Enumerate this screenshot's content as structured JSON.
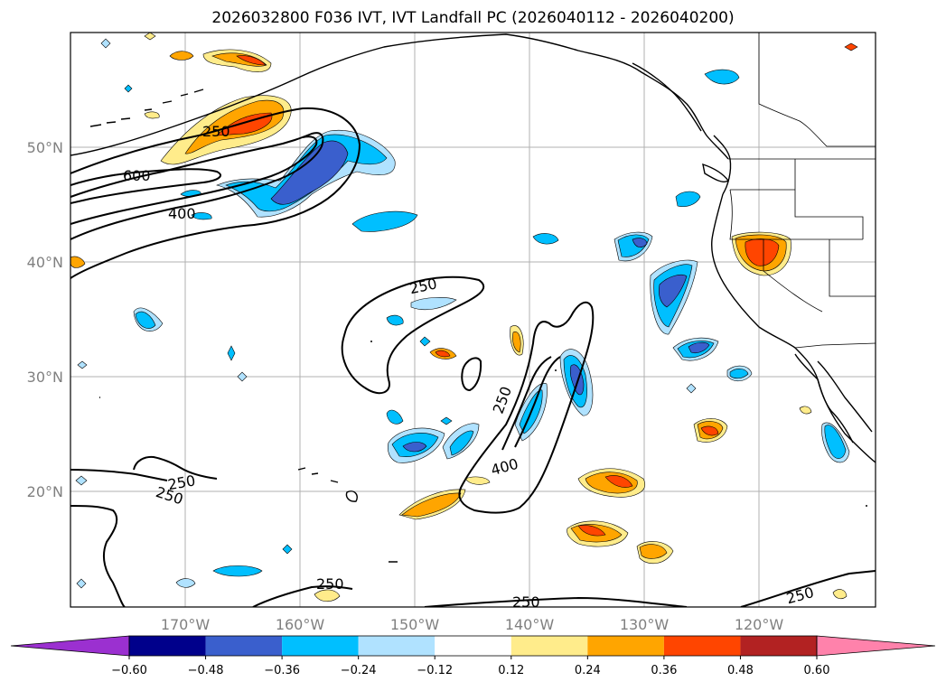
{
  "title": "2026032800 F036 IVT, IVT Landfall PC (2026040112 - 2026040200)",
  "lat_labels": [
    "50°N",
    "40°N",
    "30°N",
    "20°N"
  ],
  "lon_labels": [
    "170°W",
    "160°W",
    "150°W",
    "140°W",
    "130°W",
    "120°W"
  ],
  "colorbar": {
    "ticks": [
      "−0.60",
      "−0.48",
      "−0.36",
      "−0.24",
      "−0.12",
      "0.12",
      "0.24",
      "0.36",
      "0.48",
      "0.60"
    ],
    "colors": [
      "#9b30d0",
      "#00008b",
      "#3a5fcd",
      "#00bfff",
      "#b0e2ff",
      "#ffffff",
      "#ffec8b",
      "#ffa500",
      "#ff4500",
      "#b22222",
      "#ff82ab"
    ]
  },
  "ivt_contour_labels": [
    "250",
    "600",
    "400",
    "250",
    "250",
    "400",
    "250",
    "250",
    "250",
    "250",
    "250"
  ],
  "colors": {
    "coast": "#000000",
    "grid": "#b0b0b0",
    "axis_text": "#808080"
  }
}
